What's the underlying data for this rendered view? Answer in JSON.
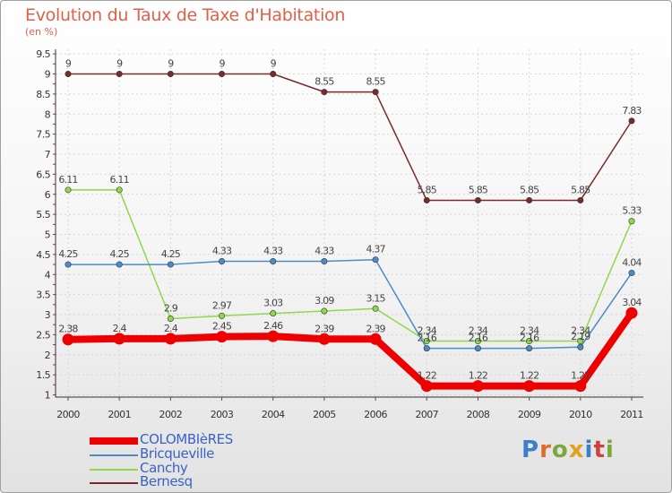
{
  "header": {
    "title": "Evolution du Taux de Taxe d'Habitation",
    "subtitle": "(en %)"
  },
  "brand": {
    "letters": [
      "P",
      "r",
      "o",
      "x",
      "i",
      "t",
      "i"
    ]
  },
  "chart_data": {
    "type": "line",
    "x": [
      "2000",
      "2001",
      "2002",
      "2003",
      "2004",
      "2005",
      "2006",
      "2007",
      "2008",
      "2009",
      "2010",
      "2011"
    ],
    "yticks": [
      "1",
      "1.5",
      "2",
      "2.5",
      "3",
      "3.5",
      "4",
      "4.5",
      "5",
      "5.5",
      "6",
      "6.5",
      "7",
      "7.5",
      "8",
      "8.5",
      "9",
      "9.5"
    ],
    "ylim": [
      0.9,
      9.5
    ],
    "grid": true,
    "legend_position": "bottom-left",
    "series": [
      {
        "name": "COLOMBIèRES",
        "color": "#ee0000",
        "values": [
          2.38,
          2.4,
          2.4,
          2.45,
          2.46,
          2.39,
          2.39,
          1.22,
          1.22,
          1.22,
          1.22,
          3.04
        ],
        "labels": [
          "2.38",
          "2.4",
          "2.4",
          "2.45",
          "2.46",
          "2.39",
          "2.39",
          "1.22",
          "1.22",
          "1.22",
          "1.22",
          "3.04"
        ]
      },
      {
        "name": "Bricqueville",
        "color": "#4a8cc8",
        "values": [
          4.25,
          4.25,
          4.25,
          4.33,
          4.33,
          4.33,
          4.37,
          2.16,
          2.16,
          2.16,
          2.19,
          4.04
        ],
        "labels": [
          "4.25",
          "4.25",
          "4.25",
          "4.33",
          "4.33",
          "4.33",
          "4.37",
          "2.16",
          "2.16",
          "2.16",
          "2.19",
          "4.04"
        ]
      },
      {
        "name": "Canchy",
        "color": "#8fd84a",
        "values": [
          6.11,
          6.11,
          2.9,
          2.97,
          3.03,
          3.09,
          3.15,
          2.34,
          2.34,
          2.34,
          2.34,
          5.33
        ],
        "labels": [
          "6.11",
          "6.11",
          "2.9",
          "2.97",
          "3.03",
          "3.09",
          "3.15",
          "2.34",
          "2.34",
          "2.34",
          "2.34",
          "5.33"
        ]
      },
      {
        "name": "Bernesq",
        "color": "#7a2a2a",
        "values": [
          9,
          9,
          9,
          9,
          9,
          8.55,
          8.55,
          5.85,
          5.85,
          5.85,
          5.85,
          7.83
        ],
        "labels": [
          "9",
          "9",
          "9",
          "9",
          "9",
          "8.55",
          "8.55",
          "5.85",
          "5.85",
          "5.85",
          "5.85",
          "7.83"
        ]
      }
    ]
  }
}
